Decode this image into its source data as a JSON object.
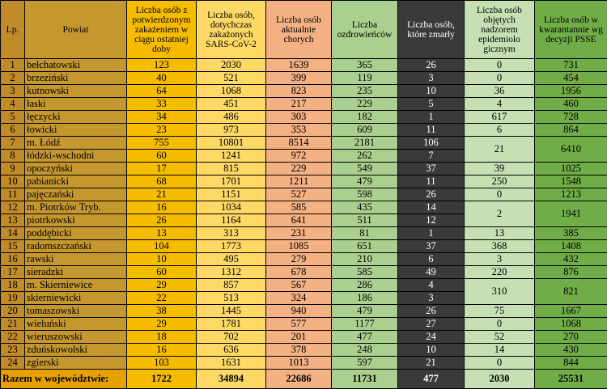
{
  "headers": {
    "lp": "Lp.",
    "powiat": "Powiat",
    "confirmed": "Liczba osób z potwierdzonym zakażeniem w ciągu ostatniej doby",
    "total": "Liczba osób, dotychczas zakażonych SARS-CoV-2",
    "active": "Liczba osób aktualnie chorych",
    "recovered": "Liczba ozdrowieńców",
    "deaths": "Liczba osób, które zmarły",
    "supervision": "Liczba osób objętych nadzorem epidemiolo gicznym",
    "quarantine": "Liczba osób w kwarantannie wg decyzji PSSE"
  },
  "rows": [
    {
      "lp": "1",
      "name": "bełchatowski",
      "confirmed": "123",
      "total": "2030",
      "active": "1639",
      "recovered": "365",
      "deaths": "26",
      "supervision": "0",
      "quarantine": "731"
    },
    {
      "lp": "2",
      "name": "brzeziński",
      "confirmed": "40",
      "total": "521",
      "active": "399",
      "recovered": "119",
      "deaths": "3",
      "supervision": "0",
      "quarantine": "454"
    },
    {
      "lp": "3",
      "name": "kutnowski",
      "confirmed": "64",
      "total": "1068",
      "active": "823",
      "recovered": "235",
      "deaths": "10",
      "supervision": "36",
      "quarantine": "1956"
    },
    {
      "lp": "4",
      "name": "łaski",
      "confirmed": "33",
      "total": "451",
      "active": "217",
      "recovered": "229",
      "deaths": "5",
      "supervision": "4",
      "quarantine": "460"
    },
    {
      "lp": "5",
      "name": "łęczycki",
      "confirmed": "34",
      "total": "486",
      "active": "303",
      "recovered": "182",
      "deaths": "1",
      "supervision": "617",
      "quarantine": "728"
    },
    {
      "lp": "6",
      "name": "łowicki",
      "confirmed": "23",
      "total": "973",
      "active": "353",
      "recovered": "609",
      "deaths": "11",
      "supervision": "6",
      "quarantine": "864"
    },
    {
      "lp": "7",
      "name": "m. Łódź",
      "confirmed": "755",
      "total": "10801",
      "active": "8514",
      "recovered": "2181",
      "deaths": "106",
      "supervision": "21",
      "quarantine": "6410"
    },
    {
      "lp": "8",
      "name": "łódzki-wschodni",
      "confirmed": "60",
      "total": "1241",
      "active": "972",
      "recovered": "262",
      "deaths": "7"
    },
    {
      "lp": "9",
      "name": "opoczyński",
      "confirmed": "17",
      "total": "815",
      "active": "229",
      "recovered": "549",
      "deaths": "37",
      "supervision": "39",
      "quarantine": "1025"
    },
    {
      "lp": "10",
      "name": "pabianicki",
      "confirmed": "68",
      "total": "1701",
      "active": "1211",
      "recovered": "479",
      "deaths": "11",
      "supervision": "250",
      "quarantine": "1548"
    },
    {
      "lp": "11",
      "name": "pajęczański",
      "confirmed": "21",
      "total": "1151",
      "active": "527",
      "recovered": "598",
      "deaths": "26",
      "supervision": "0",
      "quarantine": "1213"
    },
    {
      "lp": "12",
      "name": "m. Piotrków Tryb.",
      "confirmed": "16",
      "total": "1034",
      "active": "585",
      "recovered": "435",
      "deaths": "14",
      "supervision": "2",
      "quarantine": "1941"
    },
    {
      "lp": "13",
      "name": "piotrkowski",
      "confirmed": "26",
      "total": "1164",
      "active": "641",
      "recovered": "511",
      "deaths": "12"
    },
    {
      "lp": "14",
      "name": "poddębicki",
      "confirmed": "13",
      "total": "313",
      "active": "231",
      "recovered": "81",
      "deaths": "1",
      "supervision": "13",
      "quarantine": "385"
    },
    {
      "lp": "15",
      "name": "radomszczański",
      "confirmed": "104",
      "total": "1773",
      "active": "1085",
      "recovered": "651",
      "deaths": "37",
      "supervision": "368",
      "quarantine": "1408"
    },
    {
      "lp": "16",
      "name": "rawski",
      "confirmed": "10",
      "total": "495",
      "active": "279",
      "recovered": "210",
      "deaths": "6",
      "supervision": "3",
      "quarantine": "432"
    },
    {
      "lp": "17",
      "name": "sieradzki",
      "confirmed": "60",
      "total": "1312",
      "active": "678",
      "recovered": "585",
      "deaths": "49",
      "supervision": "220",
      "quarantine": "876"
    },
    {
      "lp": "18",
      "name": "m. Skierniewice",
      "confirmed": "29",
      "total": "857",
      "active": "567",
      "recovered": "286",
      "deaths": "4",
      "supervision": "310",
      "quarantine": "821"
    },
    {
      "lp": "19",
      "name": "skierniewicki",
      "confirmed": "22",
      "total": "513",
      "active": "324",
      "recovered": "186",
      "deaths": "3"
    },
    {
      "lp": "20",
      "name": "tomaszowski",
      "confirmed": "38",
      "total": "1445",
      "active": "940",
      "recovered": "479",
      "deaths": "26",
      "supervision": "75",
      "quarantine": "1667"
    },
    {
      "lp": "21",
      "name": "wieluński",
      "confirmed": "29",
      "total": "1781",
      "active": "577",
      "recovered": "1177",
      "deaths": "27",
      "supervision": "0",
      "quarantine": "1068"
    },
    {
      "lp": "22",
      "name": "wieruszowski",
      "confirmed": "18",
      "total": "702",
      "active": "201",
      "recovered": "477",
      "deaths": "24",
      "supervision": "52",
      "quarantine": "270"
    },
    {
      "lp": "23",
      "name": "zduńskowolski",
      "confirmed": "16",
      "total": "636",
      "active": "378",
      "recovered": "248",
      "deaths": "10",
      "supervision": "14",
      "quarantine": "430"
    },
    {
      "lp": "24",
      "name": "zgierski",
      "confirmed": "103",
      "total": "1631",
      "active": "1013",
      "recovered": "597",
      "deaths": "21",
      "supervision": "0",
      "quarantine": "844"
    }
  ],
  "totals": {
    "label": "Razem w województwie:",
    "confirmed": "1722",
    "total": "34894",
    "active": "22686",
    "recovered": "11731",
    "deaths": "477",
    "supervision": "2030",
    "quarantine": "25531"
  }
}
